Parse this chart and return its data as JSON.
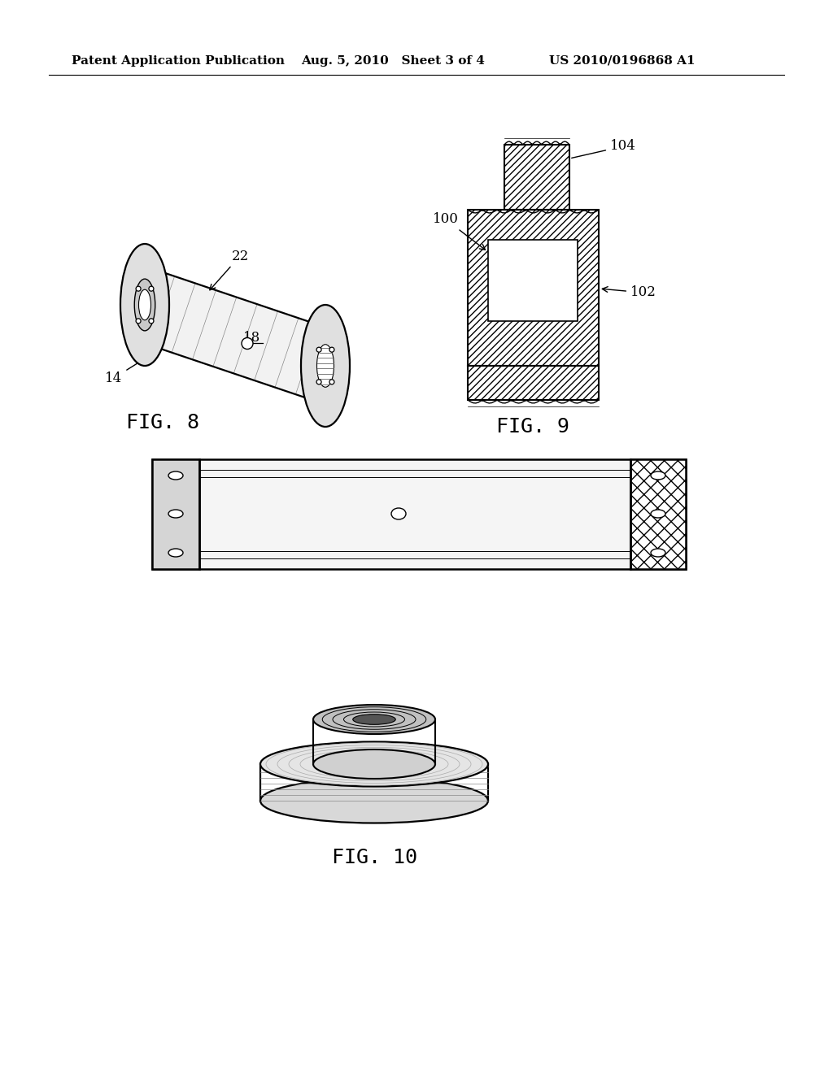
{
  "bg_color": "#ffffff",
  "header_left": "Patent Application Publication",
  "header_mid": "Aug. 5, 2010   Sheet 3 of 4",
  "header_right": "US 2010/0196868 A1",
  "fig8_label": "FIG. 8",
  "fig9_label": "FIG. 9",
  "fig10_label": "FIG. 10",
  "line_color": "#000000",
  "hatch_color": "#000000"
}
